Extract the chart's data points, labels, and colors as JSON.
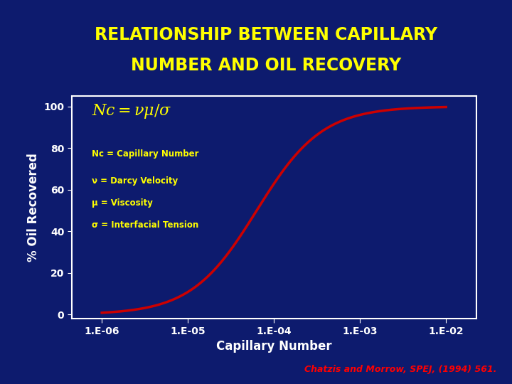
{
  "title_line1": "RELATIONSHIP BETWEEN CAPILLARY",
  "title_line2": "NUMBER AND OIL RECOVERY",
  "title_color": "#FFFF00",
  "title_fontsize": 17,
  "bg_color": "#0D1B6E",
  "plot_bg_color": "#0D1B6E",
  "xlabel": "Capillary Number",
  "ylabel": "% Oil Recovered",
  "xlabel_color": "#FFFFFF",
  "ylabel_color": "#FFFFFF",
  "axis_label_fontsize": 12,
  "tick_label_color": "#FFFFFF",
  "tick_label_fontsize": 10,
  "yticks": [
    0,
    20,
    40,
    60,
    80,
    100
  ],
  "xtick_labels": [
    "1.E-06",
    "1.E-05",
    "1.E-04",
    "1.E-03",
    "1.E-02"
  ],
  "xtick_values": [
    1e-06,
    1e-05,
    0.0001,
    0.001,
    0.01
  ],
  "ylim": [
    -2,
    105
  ],
  "curve_color": "#CC0000",
  "curve_linewidth": 2.5,
  "formula_color": "#FFFF00",
  "formula_fontsize": 16,
  "legend_lines": [
    "Nc = Capillary Number",
    "ν = Darcy Velocity",
    "μ = Viscosity",
    "σ = Interfacial Tension"
  ],
  "legend_color": "#FFFF00",
  "legend_fontsize": 8.5,
  "citation_text": "Chatzis and Morrow, SPEJ, (1994) 561.",
  "citation_color": "#FF0000",
  "citation_fontsize": 9,
  "spine_color": "#FFFFFF",
  "tick_color": "#FFFFFF"
}
